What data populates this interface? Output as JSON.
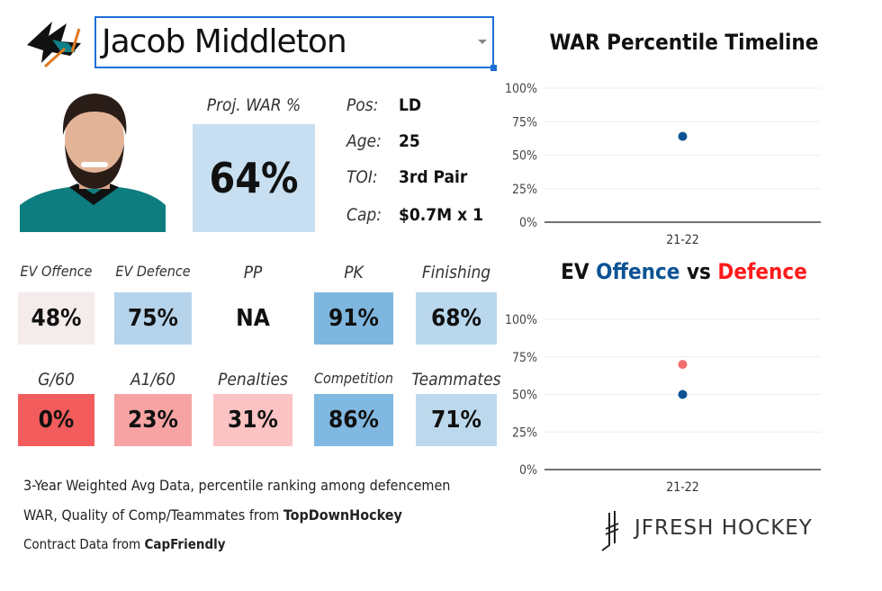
{
  "team_logo": "sharks-logo",
  "player": {
    "name": "Jacob Middleton"
  },
  "proj": {
    "label": "Proj. WAR %",
    "value": "64%",
    "color": "#c7dff0"
  },
  "info": [
    {
      "key": "Pos:",
      "value": "LD"
    },
    {
      "key": "Age:",
      "value": "25"
    },
    {
      "key": "TOI:",
      "value": "3rd Pair"
    },
    {
      "key": "Cap:",
      "value": "$0.7M x 1"
    }
  ],
  "tiles": [
    {
      "label": "EV Offence",
      "value": "48%",
      "color": "#f3eceb"
    },
    {
      "label": "EV Defence",
      "value": "75%",
      "color": "#b6d3ec"
    },
    {
      "label": "PP",
      "value": "NA",
      "color": "#ffffff"
    },
    {
      "label": "PK",
      "value": "91%",
      "color": "#7eb6e0"
    },
    {
      "label": "Finishing",
      "value": "68%",
      "color": "#b9d7ed"
    },
    {
      "label": "G/60",
      "value": "0%",
      "color": "#f25c5c"
    },
    {
      "label": "A1/60",
      "value": "23%",
      "color": "#f7a3a3"
    },
    {
      "label": "Penalties",
      "value": "31%",
      "color": "#fbc3c3"
    },
    {
      "label": "Competition",
      "value": "86%",
      "color": "#80b8e1"
    },
    {
      "label": "Teammates",
      "value": "71%",
      "color": "#bcd8ec"
    }
  ],
  "footer": {
    "line1": "3-Year Weighted Avg Data, percentile ranking among defencemen",
    "line2_prefix": "WAR, Quality of Comp/Teammates from ",
    "line2_bold": "TopDownHockey",
    "line3_prefix": "Contract Data from ",
    "line3_bold": "CapFriendly"
  },
  "brand": "JFRESH HOCKEY",
  "chart_data": [
    {
      "type": "scatter",
      "title": "WAR Percentile Timeline",
      "categories": [
        "21-22"
      ],
      "yticks": [
        "0%",
        "25%",
        "50%",
        "75%",
        "100%"
      ],
      "ylim": [
        0,
        100
      ],
      "grid": true,
      "series": [
        {
          "values": [
            64
          ],
          "color": "#0b5394"
        }
      ]
    },
    {
      "type": "scatter",
      "title_parts": [
        {
          "text": "EV ",
          "color": "#111111"
        },
        {
          "text": "Offence",
          "color": "#0b5394"
        },
        {
          "text": " vs ",
          "color": "#111111"
        },
        {
          "text": "Defence",
          "color": "#ff1a1a"
        }
      ],
      "categories": [
        "21-22"
      ],
      "yticks": [
        "0%",
        "25%",
        "50%",
        "75%",
        "100%"
      ],
      "ylim": [
        0,
        100
      ],
      "grid": true,
      "series": [
        {
          "name": "Offence",
          "values": [
            50
          ],
          "color": "#0b5394"
        },
        {
          "name": "Defence",
          "values": [
            70
          ],
          "color": "#f26d6d"
        }
      ]
    }
  ]
}
